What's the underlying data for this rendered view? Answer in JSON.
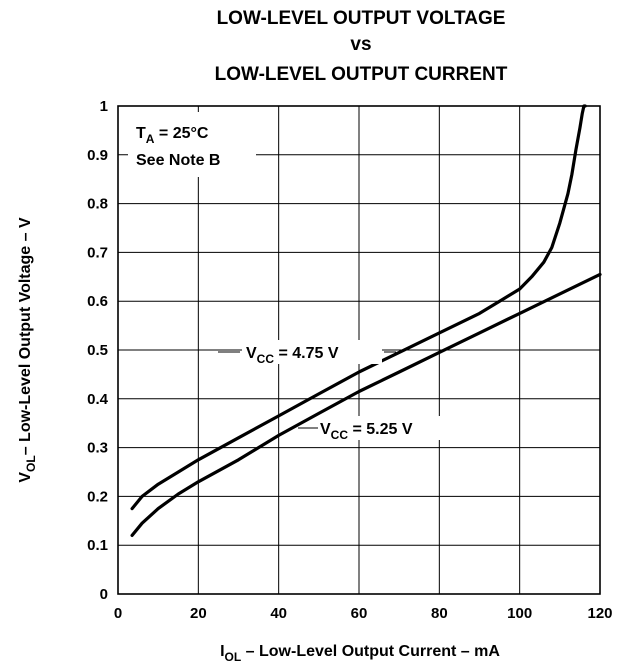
{
  "chart_data": {
    "type": "line",
    "title_lines": [
      "LOW-LEVEL OUTPUT VOLTAGE",
      "vs",
      "LOW-LEVEL OUTPUT CURRENT"
    ],
    "xlabel": {
      "main": "I",
      "sub": "OL",
      "rest": " – Low-Level Output Current – mA"
    },
    "ylabel": {
      "main": "V",
      "sub": "OL",
      "rest": "– Low-Level Output Voltage – V"
    },
    "xlim": [
      0,
      120
    ],
    "ylim": [
      0,
      1
    ],
    "x_ticks": [
      "0",
      "20",
      "40",
      "60",
      "80",
      "100",
      "120"
    ],
    "y_ticks": [
      "0",
      "0.1",
      "0.2",
      "0.3",
      "0.4",
      "0.5",
      "0.6",
      "0.7",
      "0.8",
      "0.9",
      "1"
    ],
    "grid": true,
    "annotations": {
      "condition": {
        "main": "T",
        "sub": "A",
        "rest": " = 25°C"
      },
      "note": "See Note B"
    },
    "series": [
      {
        "name": "V_CC = 4.75 V",
        "label": {
          "main": "V",
          "sub": "CC",
          "rest": " = 4.75 V"
        },
        "x": [
          3.5,
          6,
          10,
          15,
          20,
          30,
          40,
          50,
          60,
          70,
          80,
          90,
          95,
          100,
          103,
          106,
          108,
          110,
          112,
          113,
          114,
          115,
          115.6,
          116,
          116.3
        ],
        "y": [
          0.175,
          0.2,
          0.225,
          0.25,
          0.275,
          0.32,
          0.365,
          0.41,
          0.455,
          0.495,
          0.535,
          0.575,
          0.6,
          0.625,
          0.65,
          0.68,
          0.71,
          0.76,
          0.82,
          0.86,
          0.91,
          0.955,
          0.985,
          1.0,
          1.0
        ]
      },
      {
        "name": "V_CC = 5.25 V",
        "label": {
          "main": "V",
          "sub": "CC",
          "rest": " = 5.25 V"
        },
        "x": [
          3.5,
          6,
          10,
          15,
          20,
          30,
          40,
          50,
          60,
          70,
          80,
          90,
          100,
          110,
          120
        ],
        "y": [
          0.12,
          0.145,
          0.175,
          0.205,
          0.23,
          0.275,
          0.325,
          0.37,
          0.415,
          0.455,
          0.495,
          0.535,
          0.575,
          0.615,
          0.655
        ]
      }
    ]
  }
}
